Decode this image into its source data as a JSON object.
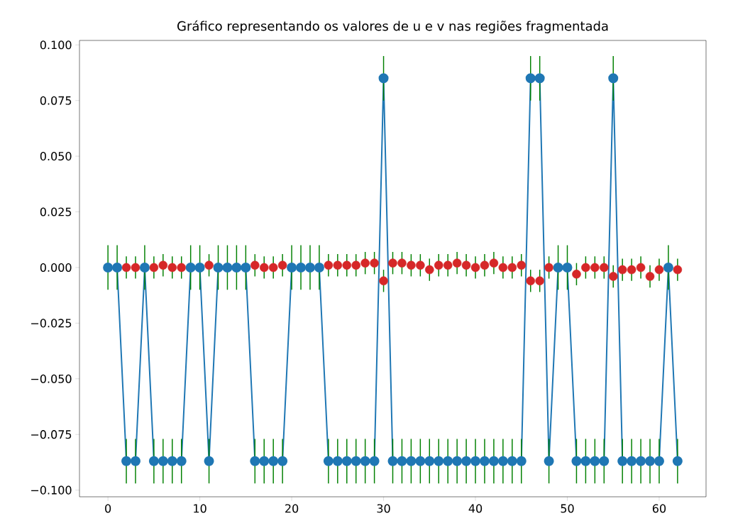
{
  "chart_data": {
    "type": "line",
    "title": "Gráfico representando os valores de u e v nas regiões fragmentada",
    "x": [
      0,
      1,
      2,
      3,
      4,
      5,
      6,
      7,
      8,
      9,
      10,
      11,
      12,
      13,
      14,
      15,
      16,
      17,
      18,
      19,
      20,
      21,
      22,
      23,
      24,
      25,
      26,
      27,
      28,
      29,
      30,
      31,
      32,
      33,
      34,
      35,
      36,
      37,
      38,
      39,
      40,
      41,
      42,
      43,
      44,
      45,
      46,
      47,
      48,
      49,
      50,
      51,
      52,
      53,
      54,
      55,
      56,
      57,
      58,
      59,
      60,
      61,
      62
    ],
    "series": [
      {
        "type": "scatter",
        "color": "#d62728",
        "values": [
          null,
          null,
          0.0,
          0.0,
          null,
          0.0,
          0.001,
          0.0,
          0.0,
          null,
          null,
          0.001,
          null,
          null,
          null,
          null,
          0.001,
          0.0,
          0.0,
          0.001,
          null,
          null,
          null,
          null,
          0.001,
          0.001,
          0.001,
          0.001,
          0.002,
          0.002,
          -0.006,
          0.002,
          0.002,
          0.001,
          0.001,
          -0.001,
          0.001,
          0.001,
          0.002,
          0.001,
          0.0,
          0.001,
          0.002,
          0.0,
          0.0,
          0.001,
          -0.006,
          -0.006,
          0.0,
          null,
          null,
          -0.003,
          0.0,
          0.0,
          0.0,
          -0.004,
          -0.001,
          -0.001,
          0.0,
          -0.004,
          -0.001,
          null,
          -0.001
        ],
        "errors": [
          null,
          null,
          0.005,
          0.005,
          null,
          0.005,
          0.005,
          0.005,
          0.005,
          null,
          null,
          0.005,
          null,
          null,
          null,
          null,
          0.005,
          0.005,
          0.005,
          0.005,
          null,
          null,
          null,
          null,
          0.005,
          0.005,
          0.005,
          0.005,
          0.005,
          0.005,
          0.005,
          0.005,
          0.005,
          0.005,
          0.005,
          0.005,
          0.005,
          0.005,
          0.005,
          0.005,
          0.005,
          0.005,
          0.005,
          0.005,
          0.005,
          0.005,
          0.005,
          0.005,
          0.005,
          null,
          null,
          0.005,
          0.005,
          0.005,
          0.005,
          0.005,
          0.005,
          0.005,
          0.005,
          0.005,
          0.005,
          null,
          0.005
        ]
      },
      {
        "type": "line",
        "color": "#1f77b4",
        "values": [
          0,
          0,
          -0.087,
          -0.087,
          0,
          -0.087,
          -0.087,
          -0.087,
          -0.087,
          0,
          0,
          -0.087,
          0,
          0,
          0,
          0,
          -0.087,
          -0.087,
          -0.087,
          -0.087,
          0,
          0,
          0,
          0,
          -0.087,
          -0.087,
          -0.087,
          -0.087,
          -0.087,
          -0.087,
          0.085,
          -0.087,
          -0.087,
          -0.087,
          -0.087,
          -0.087,
          -0.087,
          -0.087,
          -0.087,
          -0.087,
          -0.087,
          -0.087,
          -0.087,
          -0.087,
          -0.087,
          -0.087,
          0.085,
          0.085,
          -0.087,
          0,
          0,
          -0.087,
          -0.087,
          -0.087,
          -0.087,
          0.085,
          -0.087,
          -0.087,
          -0.087,
          -0.087,
          -0.087,
          0,
          -0.087
        ],
        "errors": [
          0.01,
          0.01,
          0.01,
          0.01,
          0.01,
          0.01,
          0.01,
          0.01,
          0.01,
          0.01,
          0.01,
          0.01,
          0.01,
          0.01,
          0.01,
          0.01,
          0.01,
          0.01,
          0.01,
          0.01,
          0.01,
          0.01,
          0.01,
          0.01,
          0.01,
          0.01,
          0.01,
          0.01,
          0.01,
          0.01,
          0.01,
          0.01,
          0.01,
          0.01,
          0.01,
          0.01,
          0.01,
          0.01,
          0.01,
          0.01,
          0.01,
          0.01,
          0.01,
          0.01,
          0.01,
          0.01,
          0.01,
          0.01,
          0.01,
          0.01,
          0.01,
          0.01,
          0.01,
          0.01,
          0.01,
          0.01,
          0.01,
          0.01,
          0.01,
          0.01,
          0.01,
          0.01,
          0.01
        ]
      }
    ],
    "marker": "circle",
    "xlim": [
      -3.1,
      65.1
    ],
    "ylim": [
      -0.103,
      0.102
    ],
    "xticks": [
      0,
      10,
      20,
      30,
      40,
      50,
      60
    ],
    "yticks": [
      {
        "value": -0.1,
        "label": "−0.100"
      },
      {
        "value": -0.075,
        "label": "−0.075"
      },
      {
        "value": -0.05,
        "label": "−0.050"
      },
      {
        "value": -0.025,
        "label": "−0.025"
      },
      {
        "value": 0,
        "label": "0.000"
      },
      {
        "value": 0.025,
        "label": "0.025"
      },
      {
        "value": 0.05,
        "label": "0.050"
      },
      {
        "value": 0.075,
        "label": "0.075"
      },
      {
        "value": 0.1,
        "label": "0.100"
      }
    ],
    "grid": false,
    "legend": false
  }
}
